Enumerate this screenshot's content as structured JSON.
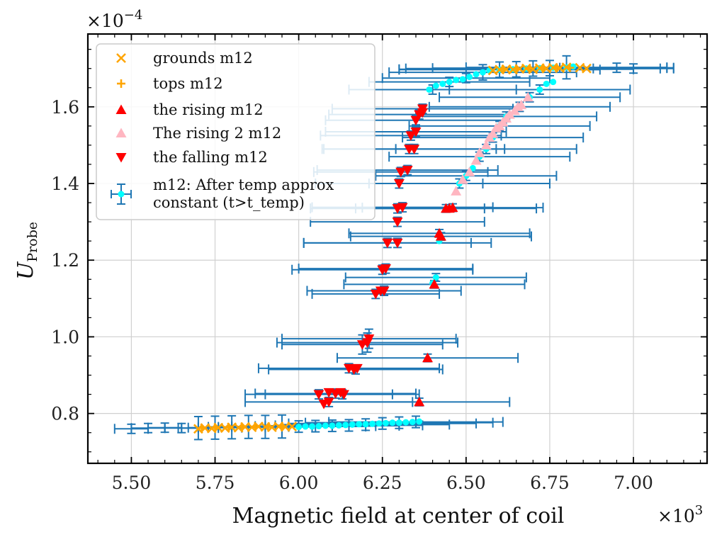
{
  "chart_data": {
    "type": "scatter",
    "title": "",
    "xlabel": "Magnetic field at center of coil",
    "ylabel": "U_Probe",
    "ylabel_main": "U",
    "ylabel_sub": "Probe",
    "x_multiplier": "×10",
    "x_multiplier_exp": "3",
    "y_multiplier": "×10",
    "y_multiplier_exp": "−4",
    "xlim": [
      5.37,
      7.22
    ],
    "ylim": [
      0.67,
      1.79
    ],
    "x_ticks": [
      5.5,
      5.75,
      6.0,
      6.25,
      6.5,
      6.75,
      7.0
    ],
    "x_tick_labels": [
      "5.50",
      "5.75",
      "6.00",
      "6.25",
      "6.50",
      "6.75",
      "7.00"
    ],
    "y_ticks": [
      0.8,
      1.0,
      1.2,
      1.4,
      1.6
    ],
    "y_tick_labels": [
      "0.8",
      "1.0",
      "1.2",
      "1.4",
      "1.6"
    ],
    "grid": true,
    "legend_position": "top-left",
    "series": [
      {
        "name": "grounds m12",
        "marker": "x",
        "color": "#ffa500",
        "points": [
          [
            5.7,
            0.76
          ],
          [
            5.72,
            0.762
          ],
          [
            5.74,
            0.761
          ],
          [
            5.76,
            0.763
          ],
          [
            5.78,
            0.762
          ],
          [
            5.8,
            0.764
          ],
          [
            5.82,
            0.763
          ],
          [
            5.84,
            0.765
          ],
          [
            5.86,
            0.764
          ],
          [
            5.88,
            0.766
          ],
          [
            5.9,
            0.765
          ],
          [
            5.92,
            0.764
          ],
          [
            5.94,
            0.766
          ],
          [
            5.96,
            0.765
          ],
          [
            5.98,
            0.766
          ],
          [
            6.58,
            1.695
          ],
          [
            6.6,
            1.697
          ],
          [
            6.62,
            1.698
          ],
          [
            6.64,
            1.697
          ],
          [
            6.66,
            1.699
          ],
          [
            6.68,
            1.7
          ],
          [
            6.7,
            1.698
          ],
          [
            6.72,
            1.701
          ],
          [
            6.74,
            1.7
          ],
          [
            6.76,
            1.702
          ],
          [
            6.78,
            1.701
          ],
          [
            6.8,
            1.703
          ],
          [
            6.84,
            1.702
          ],
          [
            6.86,
            1.7
          ]
        ]
      },
      {
        "name": "tops m12",
        "marker": "plus",
        "color": "#ffa500",
        "points": [
          [
            5.71,
            0.762
          ],
          [
            5.75,
            0.763
          ],
          [
            5.79,
            0.764
          ],
          [
            5.83,
            0.765
          ],
          [
            5.87,
            0.765
          ],
          [
            5.91,
            0.766
          ],
          [
            5.95,
            0.766
          ],
          [
            6.61,
            1.698
          ],
          [
            6.65,
            1.699
          ],
          [
            6.69,
            1.7
          ],
          [
            6.73,
            1.701
          ],
          [
            6.77,
            1.702
          ],
          [
            6.81,
            1.702
          ]
        ]
      },
      {
        "name": "the rising m12",
        "marker": "triangle-up",
        "color": "#ff0000",
        "points": [
          [
            6.36,
            0.83
          ],
          [
            6.385,
            0.945
          ],
          [
            6.405,
            1.137
          ],
          [
            6.42,
            1.27
          ],
          [
            6.425,
            1.262
          ],
          [
            6.44,
            1.335
          ],
          [
            6.45,
            1.335
          ],
          [
            6.46,
            1.337
          ]
        ]
      },
      {
        "name": "The rising 2 m12",
        "marker": "triangle-up",
        "color": "#ffb6c1",
        "points": [
          [
            6.47,
            1.38
          ],
          [
            6.49,
            1.41
          ],
          [
            6.51,
            1.43
          ],
          [
            6.53,
            1.46
          ],
          [
            6.54,
            1.48
          ],
          [
            6.56,
            1.5
          ],
          [
            6.57,
            1.52
          ],
          [
            6.58,
            1.53
          ],
          [
            6.59,
            1.545
          ],
          [
            6.6,
            1.55
          ],
          [
            6.61,
            1.56
          ],
          [
            6.62,
            1.57
          ],
          [
            6.63,
            1.58
          ],
          [
            6.645,
            1.59
          ],
          [
            6.655,
            1.6
          ],
          [
            6.665,
            1.605
          ],
          [
            6.685,
            1.625
          ]
        ]
      },
      {
        "name": "the falling m12",
        "marker": "triangle-down",
        "color": "#ff0000",
        "points": [
          [
            6.06,
            0.85
          ],
          [
            6.075,
            0.825
          ],
          [
            6.09,
            0.83
          ],
          [
            6.09,
            0.855
          ],
          [
            6.11,
            0.852
          ],
          [
            6.125,
            0.855
          ],
          [
            6.135,
            0.85
          ],
          [
            6.15,
            0.918
          ],
          [
            6.165,
            0.915
          ],
          [
            6.175,
            0.918
          ],
          [
            6.19,
            0.98
          ],
          [
            6.205,
            0.985
          ],
          [
            6.21,
            0.995
          ],
          [
            6.23,
            1.112
          ],
          [
            6.245,
            1.12
          ],
          [
            6.255,
            1.12
          ],
          [
            6.25,
            1.175
          ],
          [
            6.26,
            1.178
          ],
          [
            6.265,
            1.245
          ],
          [
            6.295,
            1.245
          ],
          [
            6.295,
            1.3
          ],
          [
            6.295,
            1.335
          ],
          [
            6.31,
            1.338
          ],
          [
            6.3,
            1.4
          ],
          [
            6.305,
            1.43
          ],
          [
            6.325,
            1.435
          ],
          [
            6.33,
            1.49
          ],
          [
            6.345,
            1.49
          ],
          [
            6.335,
            1.525
          ],
          [
            6.35,
            1.535
          ],
          [
            6.35,
            1.565
          ],
          [
            6.36,
            1.58
          ],
          [
            6.37,
            1.585
          ],
          [
            6.37,
            1.595
          ]
        ]
      },
      {
        "name": "m12: After temp approx\n constant (t>t_temp)",
        "name_line1": "m12: After temp approx",
        "name_line2": " constant (t>t_temp)",
        "marker": "circle-errorbar",
        "color": "#00ffff",
        "errorbar_color": "#1f77b4",
        "points": [
          [
            6.0,
            0.765
          ],
          [
            6.02,
            0.766
          ],
          [
            6.04,
            0.766
          ],
          [
            6.06,
            0.767
          ],
          [
            6.08,
            0.768
          ],
          [
            6.1,
            0.768
          ],
          [
            6.12,
            0.769
          ],
          [
            6.14,
            0.77
          ],
          [
            6.16,
            0.771
          ],
          [
            6.18,
            0.772
          ],
          [
            6.2,
            0.772
          ],
          [
            6.22,
            0.773
          ],
          [
            6.24,
            0.774
          ],
          [
            6.26,
            0.775
          ],
          [
            6.28,
            0.776
          ],
          [
            6.3,
            0.776
          ],
          [
            6.32,
            0.777
          ],
          [
            6.34,
            0.778
          ],
          [
            6.36,
            0.779
          ],
          [
            6.41,
            1.155
          ],
          [
            6.4,
            1.14
          ],
          [
            6.42,
            1.25
          ],
          [
            6.48,
            1.4
          ],
          [
            6.5,
            1.42
          ],
          [
            6.52,
            1.44
          ],
          [
            6.54,
            1.47
          ],
          [
            6.56,
            1.49
          ],
          [
            6.58,
            1.52
          ],
          [
            6.6,
            1.55
          ],
          [
            6.62,
            1.575
          ],
          [
            6.66,
            1.6
          ],
          [
            6.69,
            1.625
          ],
          [
            6.72,
            1.645
          ],
          [
            6.74,
            1.66
          ],
          [
            6.76,
            1.665
          ],
          [
            6.39,
            1.645
          ],
          [
            6.41,
            1.655
          ],
          [
            6.43,
            1.66
          ],
          [
            6.45,
            1.665
          ],
          [
            6.47,
            1.67
          ],
          [
            6.49,
            1.672
          ],
          [
            6.51,
            1.678
          ],
          [
            6.53,
            1.685
          ],
          [
            6.55,
            1.69
          ],
          [
            6.57,
            1.695
          ],
          [
            6.6,
            1.697
          ],
          [
            6.64,
            1.698
          ],
          [
            6.68,
            1.7
          ],
          [
            6.72,
            1.701
          ],
          [
            6.76,
            1.702
          ],
          [
            6.8,
            1.703
          ],
          [
            6.82,
            1.705
          ]
        ]
      }
    ],
    "error_bars": {
      "color": "#1f77b4",
      "bars": [
        [
          5.5,
          0.76,
          0.05,
          0.012
        ],
        [
          5.55,
          0.762,
          0.05,
          0.012
        ],
        [
          5.6,
          0.763,
          0.05,
          0.012
        ],
        [
          5.65,
          0.762,
          0.05,
          0.012
        ],
        [
          5.7,
          0.762,
          0.06,
          0.03
        ],
        [
          5.75,
          0.763,
          0.08,
          0.03
        ],
        [
          5.8,
          0.764,
          0.1,
          0.03
        ],
        [
          5.85,
          0.765,
          0.12,
          0.03
        ],
        [
          5.9,
          0.765,
          0.14,
          0.03
        ],
        [
          5.95,
          0.766,
          0.15,
          0.03
        ],
        [
          6.0,
          0.766,
          0.2,
          0.015
        ],
        [
          6.05,
          0.767,
          0.18,
          0.015
        ],
        [
          6.1,
          0.768,
          0.2,
          0.015
        ],
        [
          6.15,
          0.769,
          0.22,
          0.015
        ],
        [
          6.2,
          0.771,
          0.25,
          0.015
        ],
        [
          6.25,
          0.774,
          0.28,
          0.015
        ],
        [
          6.3,
          0.776,
          0.28,
          0.015
        ],
        [
          6.35,
          0.778,
          0.26,
          0.015
        ],
        [
          6.09,
          0.83,
          0.25,
          0.012
        ],
        [
          6.11,
          0.852,
          0.24,
          0.012
        ],
        [
          6.13,
          0.85,
          0.23,
          0.012
        ],
        [
          6.06,
          0.85,
          0.22,
          0.012
        ],
        [
          6.36,
          0.83,
          0.27,
          0.01
        ],
        [
          6.15,
          0.918,
          0.27,
          0.012
        ],
        [
          6.17,
          0.915,
          0.26,
          0.012
        ],
        [
          6.385,
          0.945,
          0.27,
          0.01
        ],
        [
          6.19,
          0.98,
          0.24,
          0.025
        ],
        [
          6.205,
          0.985,
          0.27,
          0.025
        ],
        [
          6.21,
          0.995,
          0.26,
          0.025
        ],
        [
          6.23,
          1.112,
          0.19,
          0.012
        ],
        [
          6.255,
          1.12,
          0.23,
          0.012
        ],
        [
          6.405,
          1.137,
          0.27,
          0.01
        ],
        [
          6.41,
          1.155,
          0.27,
          0.01
        ],
        [
          6.25,
          1.175,
          0.27,
          0.012
        ],
        [
          6.26,
          1.178,
          0.26,
          0.012
        ],
        [
          6.265,
          1.245,
          0.25,
          0.012
        ],
        [
          6.295,
          1.245,
          0.28,
          0.012
        ],
        [
          6.42,
          1.27,
          0.27,
          0.01
        ],
        [
          6.425,
          1.262,
          0.27,
          0.01
        ],
        [
          6.295,
          1.3,
          0.26,
          0.012
        ],
        [
          6.295,
          1.335,
          0.26,
          0.012
        ],
        [
          6.31,
          1.338,
          0.27,
          0.012
        ],
        [
          6.44,
          1.335,
          0.27,
          0.01
        ],
        [
          6.46,
          1.337,
          0.27,
          0.01
        ],
        [
          6.3,
          1.4,
          0.25,
          0.012
        ],
        [
          6.305,
          1.43,
          0.26,
          0.012
        ],
        [
          6.325,
          1.435,
          0.27,
          0.012
        ],
        [
          6.48,
          1.4,
          0.27,
          0.012
        ],
        [
          6.5,
          1.42,
          0.27,
          0.012
        ],
        [
          6.33,
          1.49,
          0.26,
          0.012
        ],
        [
          6.345,
          1.49,
          0.27,
          0.012
        ],
        [
          6.54,
          1.47,
          0.27,
          0.012
        ],
        [
          6.56,
          1.49,
          0.27,
          0.012
        ],
        [
          6.335,
          1.525,
          0.27,
          0.012
        ],
        [
          6.35,
          1.535,
          0.27,
          0.012
        ],
        [
          6.58,
          1.52,
          0.27,
          0.012
        ],
        [
          6.6,
          1.55,
          0.27,
          0.012
        ],
        [
          6.35,
          1.565,
          0.27,
          0.012
        ],
        [
          6.36,
          1.58,
          0.27,
          0.012
        ],
        [
          6.62,
          1.575,
          0.27,
          0.012
        ],
        [
          6.66,
          1.6,
          0.27,
          0.012
        ],
        [
          6.37,
          1.595,
          0.27,
          0.012
        ],
        [
          6.69,
          1.625,
          0.27,
          0.012
        ],
        [
          6.72,
          1.645,
          0.27,
          0.012
        ],
        [
          6.4,
          1.645,
          0.25,
          0.012
        ],
        [
          6.45,
          1.665,
          0.24,
          0.012
        ],
        [
          6.5,
          1.675,
          0.25,
          0.012
        ],
        [
          6.55,
          1.69,
          0.28,
          0.02
        ],
        [
          6.6,
          1.697,
          0.3,
          0.02
        ],
        [
          6.65,
          1.698,
          0.35,
          0.02
        ],
        [
          6.7,
          1.7,
          0.38,
          0.02
        ],
        [
          6.75,
          1.701,
          0.35,
          0.02
        ],
        [
          6.8,
          1.703,
          0.3,
          0.03
        ],
        [
          6.95,
          1.702,
          0.17,
          0.012
        ],
        [
          7.0,
          1.7,
          0.12,
          0.012
        ]
      ]
    }
  }
}
